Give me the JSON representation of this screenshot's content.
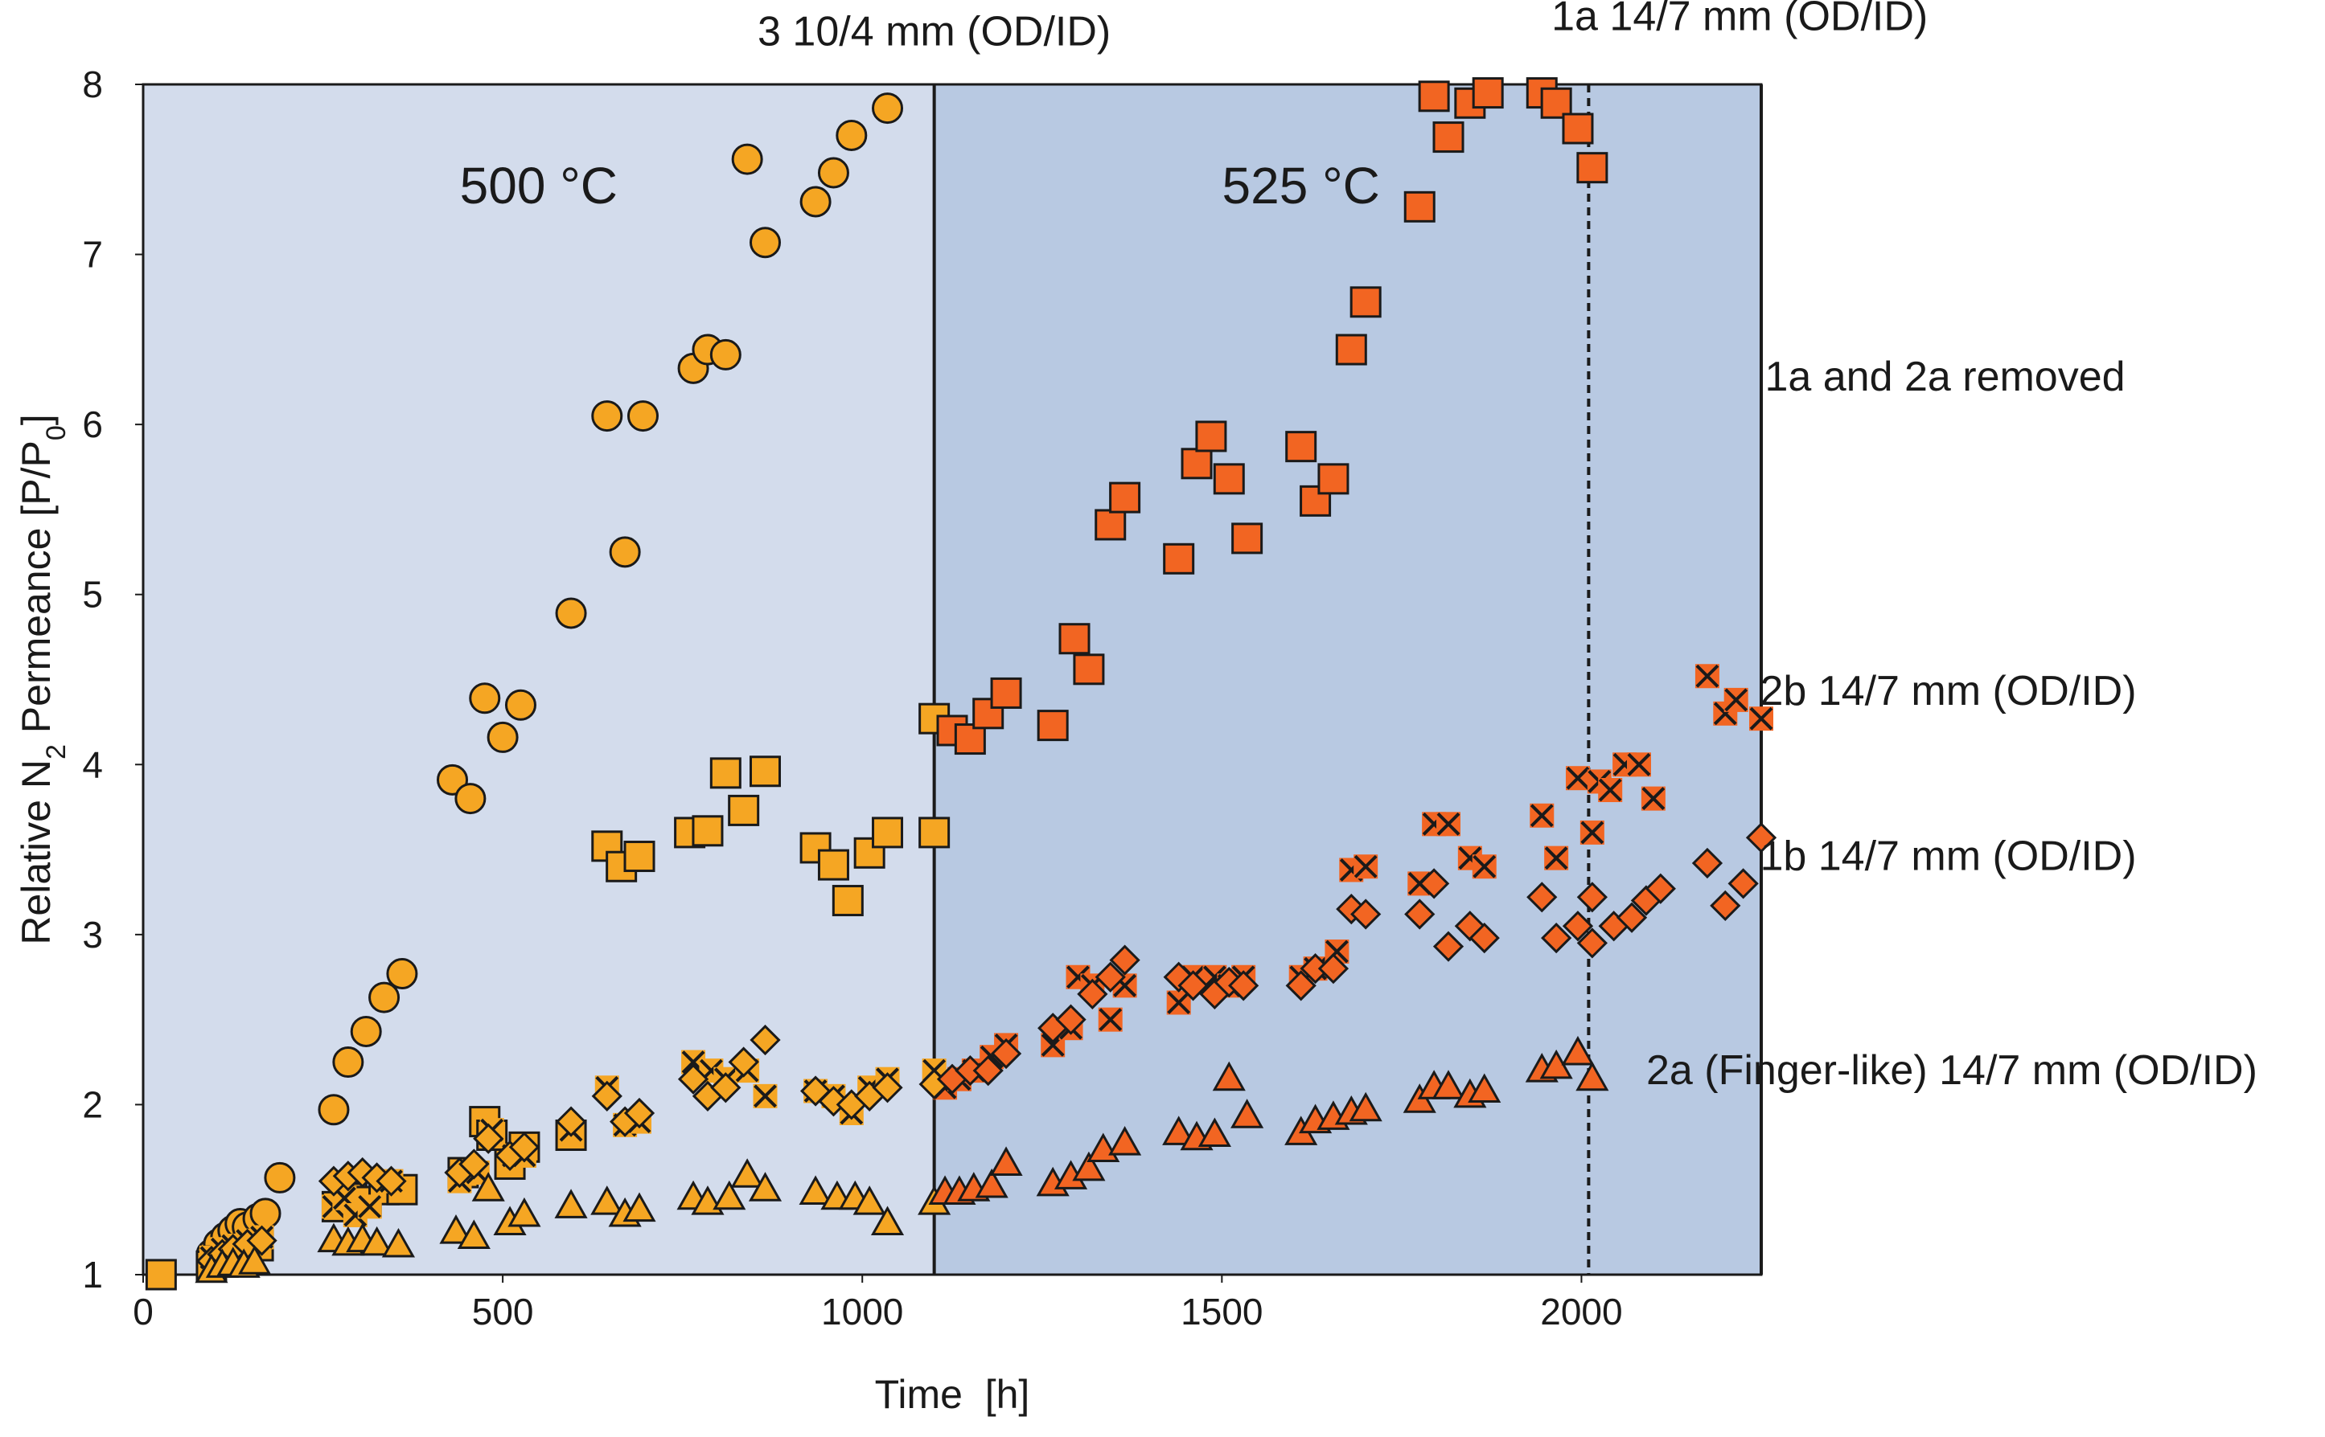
{
  "chart_data": {
    "type": "scatter",
    "title": "",
    "xlabel": "Time  [h]",
    "ylabel_parts": [
      "Relative N",
      "2",
      " Permeance [P/P",
      "0",
      "]"
    ],
    "xlim": [
      0,
      2250
    ],
    "ylim": [
      1,
      8
    ],
    "xticks": [
      0,
      500,
      1000,
      1500,
      2000
    ],
    "yticks": [
      1,
      2,
      3,
      4,
      5,
      6,
      7,
      8
    ],
    "grid": false,
    "regions": [
      {
        "label": "500 °C",
        "from": 0,
        "to": 1100,
        "color": "#d3dcec"
      },
      {
        "label": "525 °C",
        "from": 1100,
        "to": 2250,
        "color": "#b8c9e2"
      }
    ],
    "vlines": [
      {
        "x": 1100,
        "style": "solid",
        "label": "3 10/4 mm (OD/ID)"
      },
      {
        "x": 2010,
        "style": "dashed",
        "label": "1a and 2a removed"
      },
      {
        "x": 2250,
        "style": "solid",
        "label": ""
      }
    ],
    "colors": {
      "low_temp": "#f5a623",
      "high_temp": "#f26522",
      "edge": "#1a1a1a"
    },
    "series": [
      {
        "name": "3 10/4 mm (OD/ID)",
        "marker": "circle",
        "points": [
          [
            25,
            1.0
          ],
          [
            95,
            1.12
          ],
          [
            105,
            1.18
          ],
          [
            115,
            1.22
          ],
          [
            125,
            1.26
          ],
          [
            135,
            1.3
          ],
          [
            145,
            1.28
          ],
          [
            160,
            1.33
          ],
          [
            170,
            1.36
          ],
          [
            190,
            1.57
          ],
          [
            265,
            1.97
          ],
          [
            285,
            2.25
          ],
          [
            310,
            2.43
          ],
          [
            335,
            2.63
          ],
          [
            360,
            2.77
          ],
          [
            430,
            3.91
          ],
          [
            455,
            3.8
          ],
          [
            475,
            4.39
          ],
          [
            500,
            4.16
          ],
          [
            525,
            4.35
          ],
          [
            595,
            4.89
          ],
          [
            645,
            6.05
          ],
          [
            670,
            5.25
          ],
          [
            695,
            6.05
          ],
          [
            765,
            6.33
          ],
          [
            785,
            6.44
          ],
          [
            810,
            6.41
          ],
          [
            840,
            7.56
          ],
          [
            865,
            7.07
          ],
          [
            935,
            7.31
          ],
          [
            960,
            7.48
          ],
          [
            985,
            7.7
          ],
          [
            1035,
            7.86
          ]
        ]
      },
      {
        "name": "1a 14/7 mm (OD/ID)",
        "marker": "square",
        "points": [
          [
            25,
            1.0
          ],
          [
            95,
            1.05
          ],
          [
            105,
            1.08
          ],
          [
            120,
            1.12
          ],
          [
            140,
            1.15
          ],
          [
            160,
            1.17
          ],
          [
            270,
            1.4
          ],
          [
            290,
            1.45
          ],
          [
            310,
            1.43
          ],
          [
            335,
            1.5
          ],
          [
            360,
            1.5
          ],
          [
            445,
            1.6
          ],
          [
            475,
            1.9
          ],
          [
            485,
            1.82
          ],
          [
            510,
            1.65
          ],
          [
            530,
            1.75
          ],
          [
            595,
            1.82
          ],
          [
            645,
            3.52
          ],
          [
            665,
            3.4
          ],
          [
            690,
            3.46
          ],
          [
            760,
            3.6
          ],
          [
            785,
            3.61
          ],
          [
            810,
            3.95
          ],
          [
            835,
            3.73
          ],
          [
            865,
            3.96
          ],
          [
            935,
            3.51
          ],
          [
            960,
            3.41
          ],
          [
            980,
            3.2
          ],
          [
            1010,
            3.48
          ],
          [
            1035,
            3.6
          ],
          [
            1100,
            3.6
          ],
          [
            1100,
            4.27
          ],
          [
            1125,
            4.2
          ],
          [
            1150,
            4.15
          ],
          [
            1175,
            4.3
          ],
          [
            1200,
            4.42
          ],
          [
            1265,
            4.23
          ],
          [
            1295,
            4.74
          ],
          [
            1315,
            4.56
          ],
          [
            1345,
            5.41
          ],
          [
            1365,
            5.57
          ],
          [
            1440,
            5.21
          ],
          [
            1465,
            5.77
          ],
          [
            1485,
            5.93
          ],
          [
            1510,
            5.68
          ],
          [
            1535,
            5.33
          ],
          [
            1610,
            5.87
          ],
          [
            1630,
            5.55
          ],
          [
            1655,
            5.68
          ],
          [
            1680,
            6.44
          ],
          [
            1700,
            6.72
          ],
          [
            1775,
            7.28
          ],
          [
            1795,
            7.93
          ],
          [
            1815,
            7.69
          ],
          [
            1845,
            7.89
          ],
          [
            1870,
            7.95
          ],
          [
            1945,
            7.95
          ],
          [
            1965,
            7.89
          ],
          [
            1995,
            7.74
          ],
          [
            2015,
            7.51
          ]
        ]
      },
      {
        "name": "2b 14/7 mm (OD/ID)",
        "marker": "x-square",
        "points": [
          [
            95,
            1.1
          ],
          [
            110,
            1.15
          ],
          [
            125,
            1.17
          ],
          [
            145,
            1.2
          ],
          [
            165,
            1.22
          ],
          [
            265,
            1.4
          ],
          [
            280,
            1.45
          ],
          [
            295,
            1.35
          ],
          [
            315,
            1.4
          ],
          [
            345,
            1.55
          ],
          [
            440,
            1.55
          ],
          [
            465,
            1.6
          ],
          [
            485,
            1.85
          ],
          [
            515,
            1.7
          ],
          [
            530,
            1.7
          ],
          [
            595,
            1.85
          ],
          [
            645,
            2.1
          ],
          [
            670,
            1.88
          ],
          [
            690,
            1.9
          ],
          [
            765,
            2.25
          ],
          [
            790,
            2.2
          ],
          [
            810,
            2.15
          ],
          [
            840,
            2.2
          ],
          [
            865,
            2.05
          ],
          [
            935,
            2.08
          ],
          [
            960,
            2.05
          ],
          [
            985,
            1.95
          ],
          [
            1010,
            2.1
          ],
          [
            1035,
            2.15
          ],
          [
            1100,
            2.2
          ],
          [
            1115,
            2.1
          ],
          [
            1135,
            2.15
          ],
          [
            1155,
            2.2
          ],
          [
            1180,
            2.28
          ],
          [
            1200,
            2.35
          ],
          [
            1265,
            2.35
          ],
          [
            1290,
            2.45
          ],
          [
            1300,
            2.75
          ],
          [
            1320,
            2.7
          ],
          [
            1345,
            2.5
          ],
          [
            1365,
            2.7
          ],
          [
            1440,
            2.6
          ],
          [
            1460,
            2.75
          ],
          [
            1490,
            2.75
          ],
          [
            1510,
            2.7
          ],
          [
            1530,
            2.75
          ],
          [
            1610,
            2.75
          ],
          [
            1630,
            2.8
          ],
          [
            1660,
            2.9
          ],
          [
            1680,
            3.38
          ],
          [
            1700,
            3.4
          ],
          [
            1775,
            3.3
          ],
          [
            1795,
            3.65
          ],
          [
            1815,
            3.65
          ],
          [
            1845,
            3.45
          ],
          [
            1865,
            3.4
          ],
          [
            1945,
            3.7
          ],
          [
            1965,
            3.45
          ],
          [
            1995,
            3.92
          ],
          [
            2015,
            3.6
          ],
          [
            2025,
            3.9
          ],
          [
            2040,
            3.85
          ],
          [
            2060,
            4.0
          ],
          [
            2080,
            4.0
          ],
          [
            2100,
            3.8
          ],
          [
            2175,
            4.52
          ],
          [
            2200,
            4.3
          ],
          [
            2215,
            4.38
          ],
          [
            2250,
            4.27
          ]
        ]
      },
      {
        "name": "1b 14/7 mm (OD/ID)",
        "marker": "diamond",
        "points": [
          [
            95,
            1.08
          ],
          [
            110,
            1.12
          ],
          [
            125,
            1.15
          ],
          [
            145,
            1.18
          ],
          [
            165,
            1.2
          ],
          [
            265,
            1.55
          ],
          [
            285,
            1.58
          ],
          [
            305,
            1.6
          ],
          [
            325,
            1.57
          ],
          [
            345,
            1.55
          ],
          [
            440,
            1.6
          ],
          [
            460,
            1.65
          ],
          [
            480,
            1.8
          ],
          [
            510,
            1.7
          ],
          [
            530,
            1.75
          ],
          [
            595,
            1.9
          ],
          [
            645,
            2.05
          ],
          [
            670,
            1.9
          ],
          [
            690,
            1.95
          ],
          [
            765,
            2.15
          ],
          [
            785,
            2.05
          ],
          [
            810,
            2.1
          ],
          [
            835,
            2.25
          ],
          [
            865,
            2.38
          ],
          [
            935,
            2.08
          ],
          [
            960,
            2.02
          ],
          [
            985,
            2.0
          ],
          [
            1010,
            2.05
          ],
          [
            1035,
            2.1
          ],
          [
            1100,
            2.12
          ],
          [
            1125,
            2.15
          ],
          [
            1150,
            2.2
          ],
          [
            1175,
            2.2
          ],
          [
            1200,
            2.3
          ],
          [
            1265,
            2.45
          ],
          [
            1290,
            2.5
          ],
          [
            1320,
            2.65
          ],
          [
            1345,
            2.75
          ],
          [
            1365,
            2.85
          ],
          [
            1440,
            2.75
          ],
          [
            1460,
            2.7
          ],
          [
            1490,
            2.65
          ],
          [
            1510,
            2.72
          ],
          [
            1530,
            2.7
          ],
          [
            1610,
            2.7
          ],
          [
            1630,
            2.8
          ],
          [
            1655,
            2.8
          ],
          [
            1680,
            3.15
          ],
          [
            1700,
            3.12
          ],
          [
            1775,
            3.12
          ],
          [
            1795,
            3.3
          ],
          [
            1815,
            2.93
          ],
          [
            1845,
            3.05
          ],
          [
            1865,
            2.98
          ],
          [
            1945,
            3.22
          ],
          [
            1965,
            2.98
          ],
          [
            1995,
            3.05
          ],
          [
            2015,
            3.22
          ],
          [
            2015,
            2.95
          ],
          [
            2045,
            3.05
          ],
          [
            2070,
            3.1
          ],
          [
            2090,
            3.2
          ],
          [
            2110,
            3.27
          ],
          [
            2175,
            3.42
          ],
          [
            2200,
            3.17
          ],
          [
            2225,
            3.3
          ],
          [
            2250,
            3.57
          ]
        ]
      },
      {
        "name": "2a (Finger-like) 14/7 mm (OD/ID)",
        "marker": "triangle",
        "points": [
          [
            95,
            1.02
          ],
          [
            110,
            1.05
          ],
          [
            125,
            1.06
          ],
          [
            140,
            1.05
          ],
          [
            155,
            1.07
          ],
          [
            265,
            1.2
          ],
          [
            285,
            1.18
          ],
          [
            305,
            1.2
          ],
          [
            325,
            1.18
          ],
          [
            355,
            1.17
          ],
          [
            435,
            1.25
          ],
          [
            460,
            1.22
          ],
          [
            480,
            1.5
          ],
          [
            510,
            1.3
          ],
          [
            530,
            1.35
          ],
          [
            595,
            1.4
          ],
          [
            645,
            1.42
          ],
          [
            670,
            1.35
          ],
          [
            690,
            1.38
          ],
          [
            765,
            1.45
          ],
          [
            785,
            1.42
          ],
          [
            815,
            1.45
          ],
          [
            840,
            1.58
          ],
          [
            865,
            1.5
          ],
          [
            935,
            1.48
          ],
          [
            965,
            1.45
          ],
          [
            990,
            1.45
          ],
          [
            1010,
            1.42
          ],
          [
            1035,
            1.3
          ],
          [
            1100,
            1.42
          ],
          [
            1115,
            1.48
          ],
          [
            1135,
            1.48
          ],
          [
            1155,
            1.5
          ],
          [
            1180,
            1.52
          ],
          [
            1200,
            1.65
          ],
          [
            1265,
            1.53
          ],
          [
            1290,
            1.57
          ],
          [
            1315,
            1.62
          ],
          [
            1335,
            1.73
          ],
          [
            1365,
            1.77
          ],
          [
            1440,
            1.83
          ],
          [
            1465,
            1.8
          ],
          [
            1490,
            1.82
          ],
          [
            1510,
            2.15
          ],
          [
            1535,
            1.93
          ],
          [
            1610,
            1.83
          ],
          [
            1630,
            1.9
          ],
          [
            1655,
            1.92
          ],
          [
            1680,
            1.95
          ],
          [
            1700,
            1.97
          ],
          [
            1775,
            2.02
          ],
          [
            1795,
            2.1
          ],
          [
            1815,
            2.1
          ],
          [
            1845,
            2.05
          ],
          [
            1865,
            2.08
          ],
          [
            1945,
            2.2
          ],
          [
            1965,
            2.22
          ],
          [
            1995,
            2.3
          ],
          [
            2015,
            2.15
          ]
        ]
      }
    ],
    "annotations": [
      {
        "text": "500 °C",
        "x": 550,
        "y": 7.3,
        "kind": "temp"
      },
      {
        "text": "525 °C",
        "x": 1610,
        "y": 7.3,
        "kind": "temp"
      },
      {
        "text": "3 10/4 mm (OD/ID)",
        "x": 1100,
        "y": 8.23,
        "kind": "label"
      },
      {
        "text": "1a 14/7 mm (OD/ID)",
        "x": 2220,
        "y": 8.32,
        "kind": "label"
      },
      {
        "text": "1a and 2a removed",
        "x": 2255,
        "y": 6.2,
        "kind": "label"
      },
      {
        "text": "2b 14/7 mm (OD/ID)",
        "x": 2510,
        "y": 4.35,
        "kind": "label"
      },
      {
        "text": "1b 14/7 mm (OD/ID)",
        "x": 2510,
        "y": 3.38,
        "kind": "label"
      },
      {
        "text": "2a (Finger-like) 14/7 mm (OD/ID)",
        "x": 2515,
        "y": 2.12,
        "kind": "label"
      }
    ]
  }
}
